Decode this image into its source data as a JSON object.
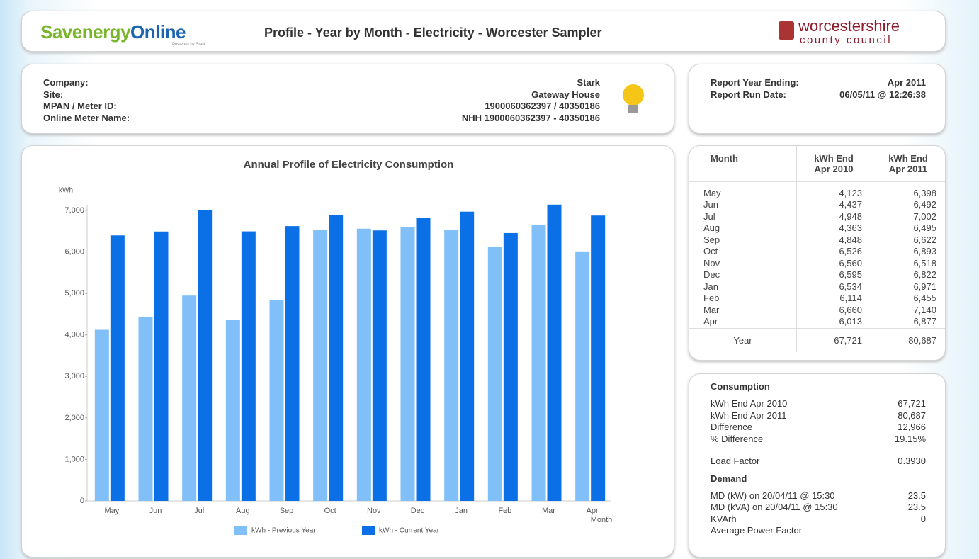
{
  "header": {
    "logo_part1": "Savenergy",
    "logo_part2": "Online",
    "logo_sub": "Powered by Stark",
    "title": "Profile - Year by Month - Electricity - Worcester Sampler",
    "council": "worcestershire",
    "council_sub": "county council"
  },
  "info": {
    "labels": [
      "Company:",
      "Site:",
      "MPAN / Meter ID:",
      "Online Meter Name:"
    ],
    "values": [
      "Stark",
      "Gateway House",
      "1900060362397 / 40350186",
      "NHH 1900060362397 - 40350186"
    ]
  },
  "report": {
    "rows": [
      [
        "Report Year Ending:",
        "Apr 2011"
      ],
      [
        "Report Run Date:",
        "06/05/11 @ 12:26:38"
      ]
    ]
  },
  "table": {
    "headers": [
      "Month",
      "kWh End Apr 2010",
      "kWh End Apr 2011"
    ],
    "rows": [
      [
        "4,123",
        "6,398"
      ],
      [
        "4,437",
        "6,492"
      ],
      [
        "4,948",
        "7,002"
      ],
      [
        "4,363",
        "6,495"
      ],
      [
        "4,848",
        "6,622"
      ],
      [
        "6,526",
        "6,893"
      ],
      [
        "6,560",
        "6,518"
      ],
      [
        "6,595",
        "6,822"
      ],
      [
        "6,534",
        "6,971"
      ],
      [
        "6,114",
        "6,455"
      ],
      [
        "6,660",
        "7,140"
      ],
      [
        "6,013",
        "6,877"
      ]
    ],
    "footer": [
      "Year",
      "67,721",
      "80,687"
    ]
  },
  "consumption": {
    "title": "Consumption",
    "rows": [
      [
        "kWh End Apr 2010",
        "67,721"
      ],
      [
        "kWh End Apr 2011",
        "80,687"
      ],
      [
        "Difference",
        "12,966"
      ],
      [
        "% Difference",
        "19.15%"
      ]
    ],
    "load_factor": [
      "Load Factor",
      "0.3930"
    ],
    "demand_title": "Demand",
    "demand_rows": [
      [
        "MD (kW) on 20/04/11 @ 15:30",
        "23.5"
      ],
      [
        "MD (kVA) on 20/04/11 @ 15:30",
        "23.5"
      ],
      [
        "KVArh",
        "0"
      ],
      [
        "Average Power Factor",
        "-"
      ]
    ]
  },
  "chart_data": {
    "type": "bar",
    "title": "Annual Profile of Electricity Consumption",
    "y_label": "kWh",
    "x_label": "Month",
    "categories": [
      "May",
      "Jun",
      "Jul",
      "Aug",
      "Sep",
      "Oct",
      "Nov",
      "Dec",
      "Jan",
      "Feb",
      "Mar",
      "Apr"
    ],
    "series": [
      {
        "name": "kWh - Previous Year",
        "color": "#80bff7",
        "values": [
          4123,
          4437,
          4948,
          4363,
          4848,
          6526,
          6560,
          6595,
          6534,
          6114,
          6660,
          6013
        ]
      },
      {
        "name": "kWh - Current Year",
        "color": "#0b6fe6",
        "values": [
          6398,
          6492,
          7002,
          6495,
          6622,
          6893,
          6518,
          6822,
          6971,
          6455,
          7140,
          6877
        ]
      }
    ],
    "ylim": [
      0,
      7000
    ],
    "yticks": [
      0,
      {
        "value": 1000,
        "label": "1,000"
      },
      {
        "value": 2000,
        "label": "2,000"
      },
      {
        "value": 3000,
        "label": "3,000"
      },
      {
        "value": 4000,
        "label": "4,000"
      },
      {
        "value": 5000,
        "label": "5,000"
      },
      {
        "value": 6000,
        "label": "6,000"
      },
      {
        "value": 7000,
        "label": "7,000"
      }
    ],
    "grid": false,
    "legend": "bottom"
  }
}
